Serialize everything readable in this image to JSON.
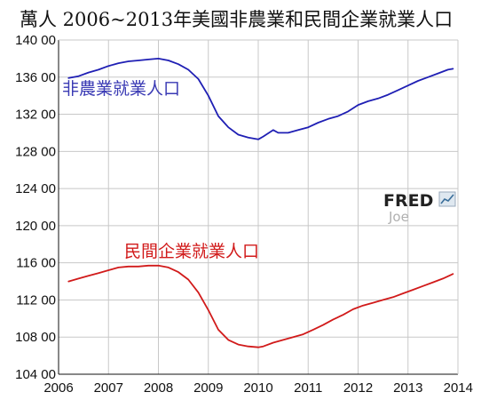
{
  "chart_data": {
    "type": "line",
    "title": "萬人 2006~2013年美國非農業和民間企業就業人口",
    "xlabel": "",
    "ylabel": "",
    "xlim": [
      2006,
      2014
    ],
    "ylim": [
      104,
      140
    ],
    "x_ticks": [
      "2006",
      "2007",
      "2008",
      "2009",
      "2010",
      "2011",
      "2012",
      "2013",
      "2014"
    ],
    "y_ticks": [
      "140 00",
      "136 00",
      "132 00",
      "128 00",
      "124 00",
      "120 00",
      "116 00",
      "112 00",
      "108 00",
      "104 00"
    ],
    "grid": true,
    "series": [
      {
        "name": "非農業就業人口",
        "color": "#1f1fb4",
        "x": [
          2006.2,
          2006.4,
          2006.6,
          2006.8,
          2007.0,
          2007.2,
          2007.4,
          2007.6,
          2007.8,
          2008.0,
          2008.2,
          2008.4,
          2008.6,
          2008.8,
          2009.0,
          2009.2,
          2009.4,
          2009.6,
          2009.8,
          2010.0,
          2010.1,
          2010.3,
          2010.4,
          2010.6,
          2010.8,
          2011.0,
          2011.2,
          2011.4,
          2011.6,
          2011.8,
          2012.0,
          2012.2,
          2012.4,
          2012.6,
          2012.8,
          2013.0,
          2013.2,
          2013.4,
          2013.6,
          2013.8,
          2013.9
        ],
        "values": [
          135.9,
          136.1,
          136.5,
          136.8,
          137.2,
          137.5,
          137.7,
          137.8,
          137.9,
          138.0,
          137.8,
          137.4,
          136.8,
          135.8,
          134.0,
          131.8,
          130.6,
          129.8,
          129.5,
          129.3,
          129.6,
          130.3,
          130.0,
          130.0,
          130.3,
          130.6,
          131.1,
          131.5,
          131.8,
          132.3,
          133.0,
          133.4,
          133.7,
          134.1,
          134.6,
          135.1,
          135.6,
          136.0,
          136.4,
          136.8,
          136.9
        ]
      },
      {
        "name": "民間企業就業人口",
        "color": "#d11a1a",
        "x": [
          2006.2,
          2006.4,
          2006.6,
          2006.8,
          2007.0,
          2007.2,
          2007.4,
          2007.6,
          2007.8,
          2008.0,
          2008.2,
          2008.4,
          2008.6,
          2008.8,
          2009.0,
          2009.2,
          2009.4,
          2009.6,
          2009.8,
          2010.0,
          2010.1,
          2010.3,
          2010.5,
          2010.7,
          2010.9,
          2011.1,
          2011.3,
          2011.5,
          2011.7,
          2011.9,
          2012.1,
          2012.3,
          2012.5,
          2012.7,
          2012.9,
          2013.1,
          2013.3,
          2013.5,
          2013.7,
          2013.9
        ],
        "values": [
          114.0,
          114.3,
          114.6,
          114.9,
          115.2,
          115.5,
          115.6,
          115.6,
          115.7,
          115.7,
          115.5,
          115.0,
          114.2,
          112.8,
          110.9,
          108.8,
          107.7,
          107.2,
          107.0,
          106.9,
          107.0,
          107.4,
          107.7,
          108.0,
          108.3,
          108.8,
          109.3,
          109.9,
          110.4,
          111.0,
          111.4,
          111.7,
          112.0,
          112.3,
          112.7,
          113.1,
          113.5,
          113.9,
          114.3,
          114.8
        ]
      }
    ]
  },
  "watermark": {
    "brand": "FRED",
    "author": "Joe"
  }
}
